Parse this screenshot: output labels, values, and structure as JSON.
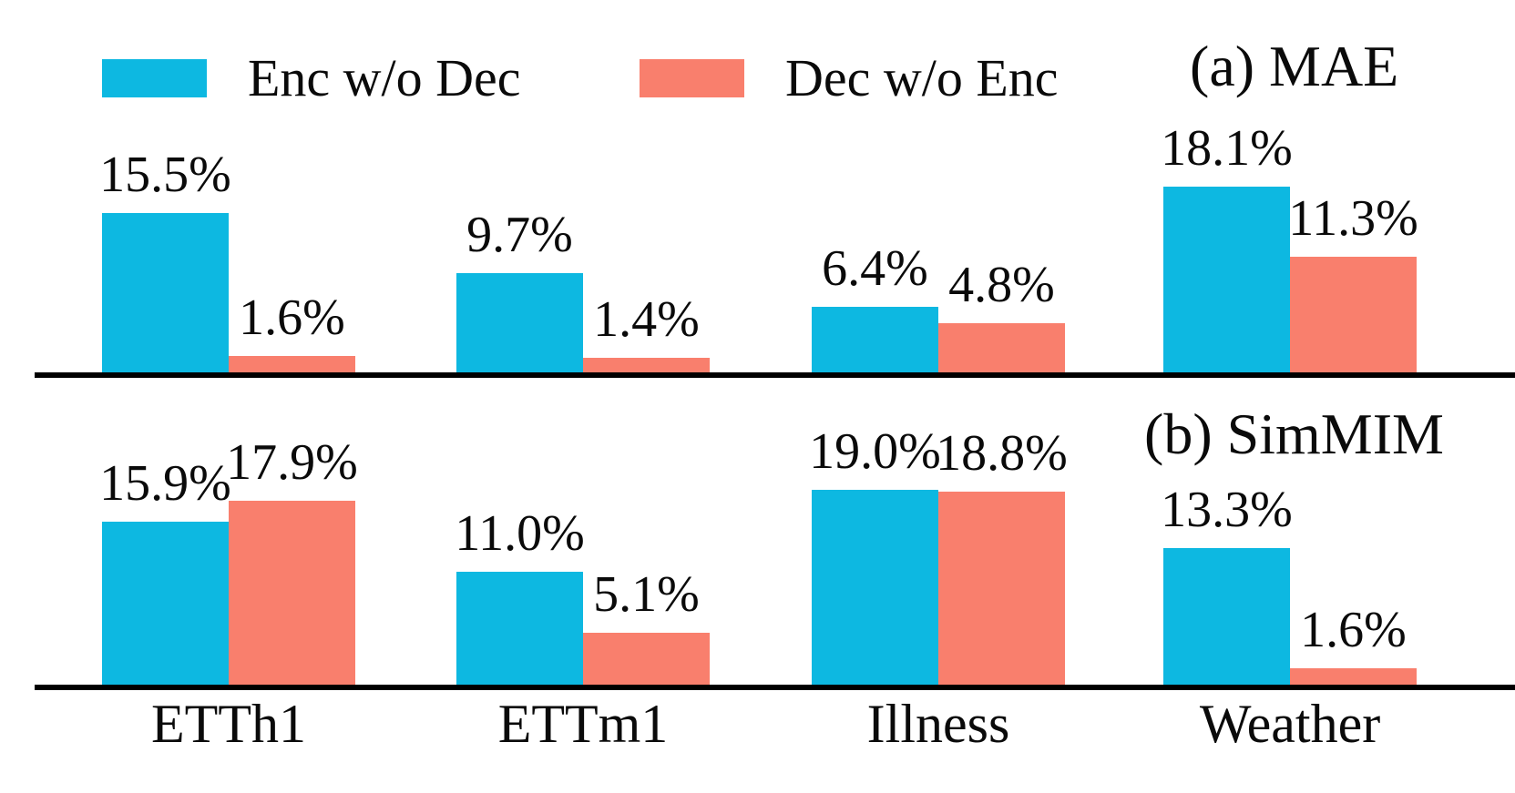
{
  "figure": {
    "colors": {
      "enc": "#0DB8E1",
      "dec": "#F97F6D",
      "axis": "#000000",
      "text": "#0A0A0A"
    },
    "legend": {
      "items": [
        {
          "label": "Enc w/o Dec",
          "color": "#0DB8E1"
        },
        {
          "label": "Dec w/o Enc",
          "color": "#F97F6D"
        }
      ]
    }
  },
  "x_axis": {
    "categories": [
      "ETTh1",
      "ETTm1",
      "Illness",
      "Weather"
    ]
  },
  "chart_data": [
    {
      "type": "bar",
      "title": "(a) MAE",
      "categories": [
        "ETTh1",
        "ETTm1",
        "Illness",
        "Weather"
      ],
      "series": [
        {
          "name": "Enc w/o Dec",
          "color": "#0DB8E1",
          "values": [
            15.5,
            9.7,
            6.4,
            18.1
          ]
        },
        {
          "name": "Dec w/o Enc",
          "color": "#F97F6D",
          "values": [
            1.6,
            1.4,
            4.8,
            11.3
          ]
        }
      ],
      "unit": "%",
      "ylim": [
        0,
        20
      ],
      "grid": false,
      "legend_position": "top",
      "value_label_format": "percent-one-decimal"
    },
    {
      "type": "bar",
      "title": "(b) SimMIM",
      "categories": [
        "ETTh1",
        "ETTm1",
        "Illness",
        "Weather"
      ],
      "series": [
        {
          "name": "Enc w/o Dec",
          "color": "#0DB8E1",
          "values": [
            15.9,
            11.0,
            19.0,
            13.3
          ]
        },
        {
          "name": "Dec w/o Enc",
          "color": "#F97F6D",
          "values": [
            17.9,
            5.1,
            18.8,
            1.6
          ]
        }
      ],
      "unit": "%",
      "ylim": [
        0,
        20
      ],
      "grid": false,
      "legend_position": "none",
      "value_label_format": "percent-one-decimal"
    }
  ]
}
